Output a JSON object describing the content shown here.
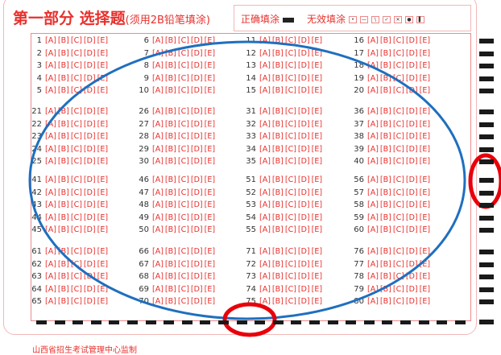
{
  "header": {
    "title": "第一部分 选择题",
    "note": "(须用2B铅笔填涂)"
  },
  "legend": {
    "correct_label": "正确填涂",
    "invalid_label": "无效填涂",
    "invalid_marks": [
      "•",
      "—",
      "\\",
      "✓",
      "✕",
      "●",
      "▌"
    ]
  },
  "options": [
    "A",
    "B",
    "C",
    "D",
    "E"
  ],
  "question_groups": [
    [
      [
        1,
        6,
        11,
        16
      ],
      [
        2,
        7,
        12,
        17
      ],
      [
        3,
        8,
        13,
        18
      ],
      [
        4,
        9,
        14,
        19
      ],
      [
        5,
        10,
        15,
        20
      ]
    ],
    [
      [
        21,
        26,
        31,
        36
      ],
      [
        22,
        27,
        32,
        37
      ],
      [
        23,
        28,
        33,
        38
      ],
      [
        24,
        29,
        34,
        39
      ],
      [
        25,
        30,
        35,
        40
      ]
    ],
    [
      [
        41,
        46,
        51,
        56
      ],
      [
        42,
        47,
        52,
        57
      ],
      [
        43,
        48,
        53,
        58
      ],
      [
        44,
        49,
        54,
        59
      ],
      [
        45,
        50,
        55,
        60
      ]
    ],
    [
      [
        61,
        66,
        71,
        76
      ],
      [
        62,
        67,
        72,
        77
      ],
      [
        63,
        68,
        73,
        78
      ],
      [
        64,
        69,
        74,
        79
      ],
      [
        65,
        70,
        75,
        80
      ]
    ]
  ],
  "footer": "山西省招生考试管理中心监制",
  "annotations": {
    "ellipse_color": "#1f6fbf",
    "circle_color": "#e8000b"
  }
}
